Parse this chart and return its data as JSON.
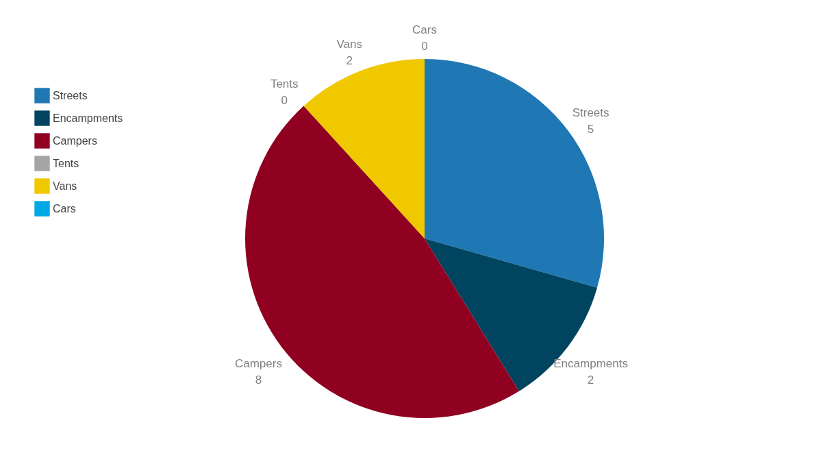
{
  "chart_data": {
    "type": "pie",
    "categories": [
      "Streets",
      "Encampments",
      "Campers",
      "Tents",
      "Vans",
      "Cars"
    ],
    "values": [
      5,
      2,
      8,
      0,
      2,
      0
    ],
    "colors": [
      "#1f77b4",
      "#00445f",
      "#900021",
      "#a5a5a5",
      "#f0c800",
      "#00a8e6"
    ],
    "value_labels": [
      "5",
      "2",
      "8",
      "0",
      "2",
      "0"
    ],
    "legend": "top left"
  }
}
